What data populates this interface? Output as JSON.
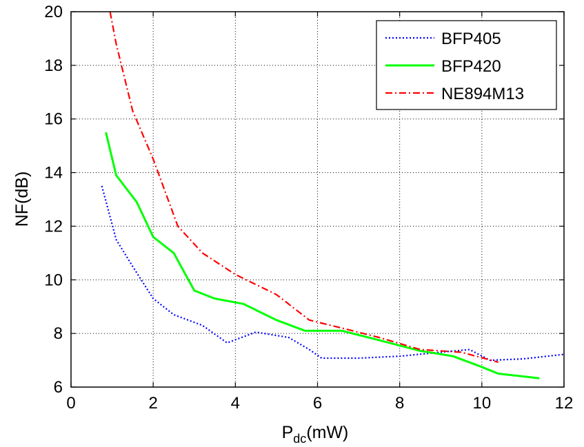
{
  "chart_data": {
    "type": "line",
    "title": "",
    "xlabel": {
      "main": "P",
      "sub": "dc",
      "rest": "(mW)"
    },
    "ylabel": "NF(dB)",
    "xlim": [
      0,
      12
    ],
    "ylim": [
      6,
      20
    ],
    "xticks": [
      0,
      2,
      4,
      6,
      8,
      10,
      12
    ],
    "yticks": [
      6,
      8,
      10,
      12,
      14,
      16,
      18,
      20
    ],
    "grid": true,
    "legend_position": "top-right",
    "series": [
      {
        "name": "BFP405",
        "color": "#0000ff",
        "style": "dotted",
        "x": [
          0.75,
          1.1,
          1.5,
          2.0,
          2.5,
          3.2,
          3.8,
          4.5,
          5.3,
          5.8,
          6.1,
          7.0,
          8.0,
          9.0,
          9.7,
          10.2,
          11.0,
          12.0
        ],
        "y": [
          13.5,
          11.5,
          10.5,
          9.3,
          8.7,
          8.3,
          7.65,
          8.05,
          7.85,
          7.4,
          7.08,
          7.08,
          7.15,
          7.3,
          7.4,
          7.0,
          7.05,
          7.22
        ]
      },
      {
        "name": "BFP420",
        "color": "#00ff00",
        "style": "solid",
        "x": [
          0.85,
          1.1,
          1.6,
          2.0,
          2.5,
          3.0,
          3.5,
          4.2,
          5.0,
          5.7,
          6.6,
          7.5,
          8.5,
          9.3,
          10.0,
          10.4,
          11.4
        ],
        "y": [
          15.5,
          13.9,
          12.9,
          11.6,
          11.0,
          9.6,
          9.3,
          9.1,
          8.5,
          8.1,
          8.1,
          7.75,
          7.35,
          7.15,
          6.75,
          6.5,
          6.33
        ]
      },
      {
        "name": "NE894M13",
        "color": "#ff0000",
        "style": "dashdot",
        "x": [
          0.95,
          1.1,
          1.5,
          2.0,
          2.6,
          3.2,
          4.0,
          5.0,
          5.8,
          6.6,
          7.5,
          8.5,
          9.5,
          10.4
        ],
        "y": [
          20.0,
          18.8,
          16.3,
          14.5,
          12.0,
          11.0,
          10.2,
          9.45,
          8.5,
          8.2,
          7.85,
          7.4,
          7.3,
          6.93
        ]
      }
    ]
  }
}
